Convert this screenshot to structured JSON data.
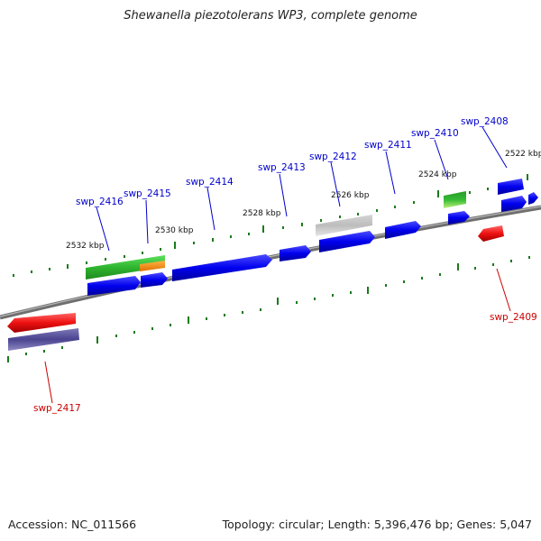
{
  "title": "Shewanella piezotolerans WP3, complete genome",
  "footer": {
    "accession": "Accession: NC_011566",
    "summary": "Topology: circular; Length: 5,396,476 bp; Genes: 5,047"
  },
  "colors": {
    "forward_cds": "#0000ee",
    "reverse_cds": "#ee1111",
    "forward_label": "#0000cc",
    "reverse_label": "#cc0000",
    "tick": "#1a7a1a",
    "backbone": "#777777"
  },
  "scale_labels": [
    "2522 kbp",
    "2524 kbp",
    "2526 kbp",
    "2528 kbp",
    "2530 kbp",
    "2532 kbp"
  ],
  "gene_labels": {
    "forward": [
      "swp_2408",
      "swp_2410",
      "swp_2411",
      "swp_2412",
      "swp_2413",
      "swp_2414",
      "swp_2415",
      "swp_2416"
    ],
    "reverse": [
      "swp_2409",
      "swp_2417"
    ]
  }
}
